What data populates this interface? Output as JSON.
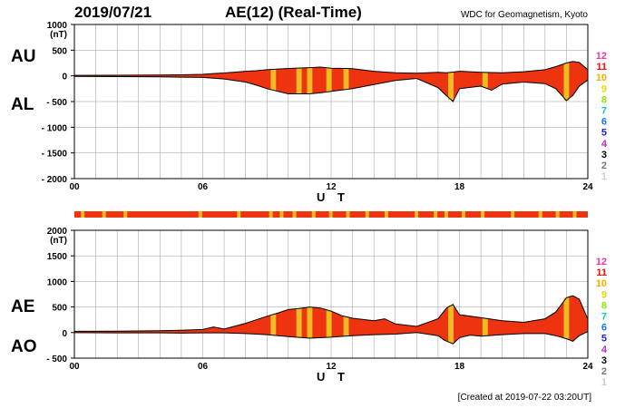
{
  "header": {
    "date": "2019/07/21",
    "title": "AE(12) (Real-Time)",
    "credit": "WDC for Geomagnetism, Kyoto"
  },
  "footer": {
    "created": "[Created at 2019-07-22 03:20UT]"
  },
  "level_legend": [
    {
      "label": "12",
      "color": "#ff3399"
    },
    {
      "label": "11",
      "color": "#ee1111"
    },
    {
      "label": "10",
      "color": "#ffaa00"
    },
    {
      "label": "9",
      "color": "#dddd00"
    },
    {
      "label": "8",
      "color": "#88ee00"
    },
    {
      "label": "7",
      "color": "#00cccc"
    },
    {
      "label": "6",
      "color": "#1177ff"
    },
    {
      "label": "5",
      "color": "#2222cc"
    },
    {
      "label": "4",
      "color": "#cc22cc"
    },
    {
      "label": "3",
      "color": "#000000"
    },
    {
      "label": "2",
      "color": "#777777"
    },
    {
      "label": "1",
      "color": "#cccccc"
    }
  ],
  "station_bar": {
    "base_color": "#ee3311",
    "highlight_color": "#eebb22",
    "highlight_hours": [
      0.3,
      1.3,
      2.3,
      5.8,
      7.6,
      9.1,
      9.6,
      10.2,
      11.1,
      11.9,
      12.7,
      13.6,
      14.5,
      15.9,
      16.8,
      17.3,
      18.1,
      19.0,
      20.4,
      21.7,
      22.5,
      23.3
    ]
  },
  "chart_data": [
    {
      "type": "area",
      "name": "AU/AL",
      "labels": {
        "upper": "AU",
        "lower": "AL"
      },
      "ylabel": "(nT)",
      "xlabel": "U T",
      "xlim": [
        0,
        24
      ],
      "ylim": [
        -2000,
        1000
      ],
      "xticks": [
        "00",
        "06",
        "12",
        "18",
        "24"
      ],
      "yticks": [
        "1000",
        "500",
        "0",
        "- 500",
        "- 1000",
        "- 1500",
        "- 2000"
      ],
      "ytick_values": [
        1000,
        500,
        0,
        -500,
        -1000,
        -1500,
        -2000
      ],
      "grid": true,
      "fill_color": "#ee3311",
      "highlight_color": "#eebb22",
      "highlight_hours": [
        9.3,
        10.5,
        11.0,
        11.9,
        12.7,
        17.6,
        19.2,
        23.0
      ],
      "series": [
        {
          "name": "AU",
          "x": [
            0,
            2,
            4,
            5,
            6,
            6.5,
            7,
            8,
            8.5,
            9,
            10,
            11,
            11.5,
            12,
            13,
            14,
            15,
            16,
            17,
            17.4,
            18,
            19,
            20,
            21,
            22,
            22.5,
            23,
            23.3,
            23.6,
            24
          ],
          "y": [
            10,
            12,
            15,
            20,
            30,
            45,
            55,
            90,
            100,
            120,
            145,
            160,
            170,
            150,
            140,
            90,
            60,
            50,
            70,
            60,
            90,
            70,
            60,
            80,
            120,
            180,
            250,
            280,
            260,
            120
          ]
        },
        {
          "name": "AL",
          "x": [
            0,
            2,
            4,
            5,
            6,
            7,
            8,
            8.5,
            9,
            10,
            11,
            11.5,
            12,
            13,
            14,
            14.5,
            15,
            16,
            17,
            17.3,
            17.7,
            18,
            19,
            19.5,
            20,
            21,
            22,
            22.5,
            23,
            23.3,
            23.6,
            24
          ],
          "y": [
            -10,
            -15,
            -20,
            -25,
            -30,
            -60,
            -120,
            -180,
            -250,
            -350,
            -350,
            -330,
            -300,
            -250,
            -170,
            -130,
            -90,
            -50,
            -230,
            -350,
            -500,
            -250,
            -200,
            -280,
            -160,
            -120,
            -150,
            -250,
            -480,
            -380,
            -200,
            -80
          ]
        }
      ]
    },
    {
      "type": "area",
      "name": "AE/AO",
      "labels": {
        "upper": "AE",
        "lower": "AO"
      },
      "ylabel": "(nT)",
      "xlabel": "U T",
      "xlim": [
        0,
        24
      ],
      "ylim": [
        -500,
        2000
      ],
      "xticks": [
        "00",
        "06",
        "12",
        "18",
        "24"
      ],
      "yticks": [
        "2000",
        "1500",
        "1000",
        "500",
        "0",
        "- 500"
      ],
      "ytick_values": [
        2000,
        1500,
        1000,
        500,
        0,
        -500
      ],
      "grid": true,
      "fill_color": "#ee3311",
      "highlight_color": "#eebb22",
      "highlight_hours": [
        9.3,
        10.5,
        11.0,
        11.9,
        12.7,
        17.6,
        19.2,
        23.0
      ],
      "series": [
        {
          "name": "AE",
          "x": [
            0,
            2,
            4,
            5,
            6,
            6.5,
            7,
            8,
            8.5,
            9,
            9.5,
            10,
            10.5,
            11,
            11.5,
            12,
            12.5,
            13,
            14,
            14.5,
            15,
            16,
            17,
            17.4,
            17.7,
            18,
            19,
            20,
            21,
            22,
            22.5,
            23,
            23.3,
            23.6,
            24
          ],
          "y": [
            25,
            27,
            35,
            45,
            60,
            110,
            70,
            180,
            250,
            320,
            380,
            450,
            470,
            500,
            480,
            420,
            330,
            280,
            230,
            270,
            170,
            120,
            270,
            480,
            550,
            350,
            290,
            230,
            200,
            270,
            400,
            680,
            720,
            650,
            260
          ]
        },
        {
          "name": "AO",
          "x": [
            0,
            2,
            4,
            5,
            6,
            7,
            8,
            9,
            10,
            11,
            12,
            13,
            14,
            15,
            16,
            17,
            17.3,
            17.7,
            18,
            18.5,
            19,
            20,
            21,
            22,
            22.5,
            23,
            23.3,
            23.6,
            24
          ],
          "y": [
            -2,
            -5,
            -5,
            -10,
            -5,
            -5,
            -20,
            -40,
            -80,
            -110,
            -90,
            -60,
            -40,
            -30,
            0,
            -60,
            -150,
            -220,
            -100,
            -50,
            -70,
            -40,
            -20,
            -20,
            -60,
            -120,
            -170,
            -60,
            20
          ]
        }
      ]
    }
  ]
}
